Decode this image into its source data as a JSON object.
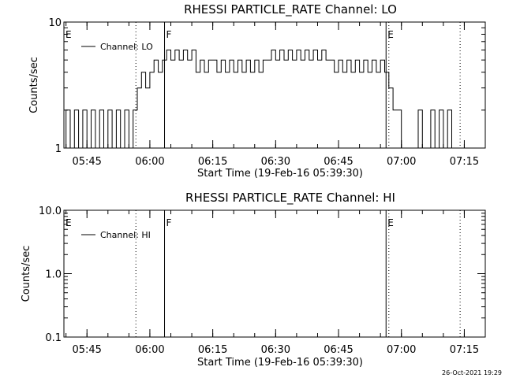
{
  "chart_data": [
    {
      "type": "line",
      "title": "RHESSI PARTICLE_RATE Channel: LO",
      "xlabel": "Start Time (19-Feb-16 05:39:30)",
      "ylabel": "Counts/sec",
      "yscale": "log",
      "ylim": [
        1,
        10
      ],
      "xlim": [
        "05:39:30",
        "07:20:00"
      ],
      "y_ticks": [
        "1",
        "10"
      ],
      "x_ticks": [
        "05:45",
        "06:00",
        "06:15",
        "06:30",
        "06:45",
        "07:00",
        "07:15"
      ],
      "legend": {
        "placement": "top-left",
        "entries": [
          "Channel: LO"
        ]
      },
      "markers": [
        {
          "time": "05:39:30",
          "label": "E",
          "style": "none"
        },
        {
          "time": "05:56:40",
          "label": "",
          "style": "dotted"
        },
        {
          "time": "06:03:30",
          "label": "F",
          "style": "solid"
        },
        {
          "time": "06:56:20",
          "label": "E",
          "style": "solid"
        },
        {
          "time": "06:57:00",
          "label": "",
          "style": "dotted"
        },
        {
          "time": "07:14:00",
          "label": "",
          "style": "dotted"
        }
      ],
      "series": [
        {
          "name": "Channel: LO",
          "segments": [
            {
              "time": "05:39:30",
              "value": 1.0
            },
            {
              "time": "05:40:00",
              "value": 2.0
            },
            {
              "time": "05:41:00",
              "value": 1.0
            },
            {
              "time": "05:42:00",
              "value": 2.0
            },
            {
              "time": "05:43:00",
              "value": 1.0
            },
            {
              "time": "05:44:00",
              "value": 2.0
            },
            {
              "time": "05:45:00",
              "value": 1.0
            },
            {
              "time": "05:46:00",
              "value": 2.0
            },
            {
              "time": "05:47:00",
              "value": 1.0
            },
            {
              "time": "05:48:00",
              "value": 2.0
            },
            {
              "time": "05:49:00",
              "value": 1.0
            },
            {
              "time": "05:50:00",
              "value": 2.0
            },
            {
              "time": "05:51:00",
              "value": 1.0
            },
            {
              "time": "05:52:00",
              "value": 2.0
            },
            {
              "time": "05:53:00",
              "value": 1.0
            },
            {
              "time": "05:54:00",
              "value": 2.0
            },
            {
              "time": "05:55:00",
              "value": 1.0
            },
            {
              "time": "05:56:00",
              "value": 2.0
            },
            {
              "time": "05:57:00",
              "value": 3.0
            },
            {
              "time": "05:58:00",
              "value": 4.0
            },
            {
              "time": "05:59:00",
              "value": 3.0
            },
            {
              "time": "06:00:00",
              "value": 4.0
            },
            {
              "time": "06:01:00",
              "value": 5.0
            },
            {
              "time": "06:02:00",
              "value": 4.0
            },
            {
              "time": "06:03:00",
              "value": 5.0
            },
            {
              "time": "06:04:00",
              "value": 6.0
            },
            {
              "time": "06:05:00",
              "value": 5.0
            },
            {
              "time": "06:06:00",
              "value": 6.0
            },
            {
              "time": "06:07:00",
              "value": 5.0
            },
            {
              "time": "06:08:00",
              "value": 6.0
            },
            {
              "time": "06:09:00",
              "value": 5.0
            },
            {
              "time": "06:10:00",
              "value": 6.0
            },
            {
              "time": "06:11:00",
              "value": 4.0
            },
            {
              "time": "06:12:00",
              "value": 5.0
            },
            {
              "time": "06:13:00",
              "value": 4.0
            },
            {
              "time": "06:14:00",
              "value": 5.0
            },
            {
              "time": "06:15:00",
              "value": 5.0
            },
            {
              "time": "06:16:00",
              "value": 4.0
            },
            {
              "time": "06:17:00",
              "value": 5.0
            },
            {
              "time": "06:18:00",
              "value": 4.0
            },
            {
              "time": "06:19:00",
              "value": 5.0
            },
            {
              "time": "06:20:00",
              "value": 4.0
            },
            {
              "time": "06:21:00",
              "value": 5.0
            },
            {
              "time": "06:22:00",
              "value": 4.0
            },
            {
              "time": "06:23:00",
              "value": 5.0
            },
            {
              "time": "06:24:00",
              "value": 4.0
            },
            {
              "time": "06:25:00",
              "value": 5.0
            },
            {
              "time": "06:26:00",
              "value": 4.0
            },
            {
              "time": "06:27:00",
              "value": 5.0
            },
            {
              "time": "06:28:00",
              "value": 5.0
            },
            {
              "time": "06:29:00",
              "value": 6.0
            },
            {
              "time": "06:30:00",
              "value": 5.0
            },
            {
              "time": "06:31:00",
              "value": 6.0
            },
            {
              "time": "06:32:00",
              "value": 5.0
            },
            {
              "time": "06:33:00",
              "value": 6.0
            },
            {
              "time": "06:34:00",
              "value": 5.0
            },
            {
              "time": "06:35:00",
              "value": 6.0
            },
            {
              "time": "06:36:00",
              "value": 5.0
            },
            {
              "time": "06:37:00",
              "value": 6.0
            },
            {
              "time": "06:38:00",
              "value": 5.0
            },
            {
              "time": "06:39:00",
              "value": 6.0
            },
            {
              "time": "06:40:00",
              "value": 5.0
            },
            {
              "time": "06:41:00",
              "value": 6.0
            },
            {
              "time": "06:42:00",
              "value": 5.0
            },
            {
              "time": "06:43:00",
              "value": 5.0
            },
            {
              "time": "06:44:00",
              "value": 4.0
            },
            {
              "time": "06:45:00",
              "value": 5.0
            },
            {
              "time": "06:46:00",
              "value": 4.0
            },
            {
              "time": "06:47:00",
              "value": 5.0
            },
            {
              "time": "06:48:00",
              "value": 4.0
            },
            {
              "time": "06:49:00",
              "value": 5.0
            },
            {
              "time": "06:50:00",
              "value": 4.0
            },
            {
              "time": "06:51:00",
              "value": 5.0
            },
            {
              "time": "06:52:00",
              "value": 4.0
            },
            {
              "time": "06:53:00",
              "value": 5.0
            },
            {
              "time": "06:54:00",
              "value": 4.0
            },
            {
              "time": "06:55:00",
              "value": 5.0
            },
            {
              "time": "06:56:00",
              "value": 4.0
            },
            {
              "time": "06:57:00",
              "value": 3.0
            },
            {
              "time": "06:58:00",
              "value": 2.0
            },
            {
              "time": "06:59:00",
              "value": 2.0
            },
            {
              "time": "07:00:00",
              "value": 1.0
            },
            {
              "time": "07:01:00",
              "value": 1.0
            },
            {
              "time": "07:02:00",
              "value": 1.0
            },
            {
              "time": "07:03:00",
              "value": 1.0
            },
            {
              "time": "07:04:00",
              "value": 2.0
            },
            {
              "time": "07:05:00",
              "value": 1.0
            },
            {
              "time": "07:06:00",
              "value": 1.0
            },
            {
              "time": "07:07:00",
              "value": 2.0
            },
            {
              "time": "07:08:00",
              "value": 1.0
            },
            {
              "time": "07:09:00",
              "value": 2.0
            },
            {
              "time": "07:10:00",
              "value": 1.0
            },
            {
              "time": "07:11:00",
              "value": 2.0
            },
            {
              "time": "07:12:00",
              "value": 1.0
            },
            {
              "time": "07:13:00",
              "value": 1.0
            }
          ]
        }
      ]
    },
    {
      "type": "line",
      "title": "RHESSI PARTICLE_RATE Channel: HI",
      "xlabel": "Start Time (19-Feb-16 05:39:30)",
      "ylabel": "Counts/sec",
      "yscale": "log",
      "ylim": [
        0.1,
        10
      ],
      "xlim": [
        "05:39:30",
        "07:20:00"
      ],
      "y_ticks": [
        "0.1",
        "1.0",
        "10.0"
      ],
      "x_ticks": [
        "05:45",
        "06:00",
        "06:15",
        "06:30",
        "06:45",
        "07:00",
        "07:15"
      ],
      "legend": {
        "placement": "top-left",
        "entries": [
          "Channel: HI"
        ]
      },
      "markers": [
        {
          "time": "05:39:30",
          "label": "E",
          "style": "none"
        },
        {
          "time": "05:56:40",
          "label": "",
          "style": "dotted"
        },
        {
          "time": "06:03:30",
          "label": "F",
          "style": "solid"
        },
        {
          "time": "06:56:20",
          "label": "E",
          "style": "solid"
        },
        {
          "time": "06:57:00",
          "label": "",
          "style": "dotted"
        },
        {
          "time": "07:14:00",
          "label": "",
          "style": "dotted"
        }
      ],
      "series": [
        {
          "name": "Channel: HI",
          "segments": []
        }
      ]
    }
  ],
  "footer": {
    "timestamp": "26-Oct-2021 19:29"
  }
}
